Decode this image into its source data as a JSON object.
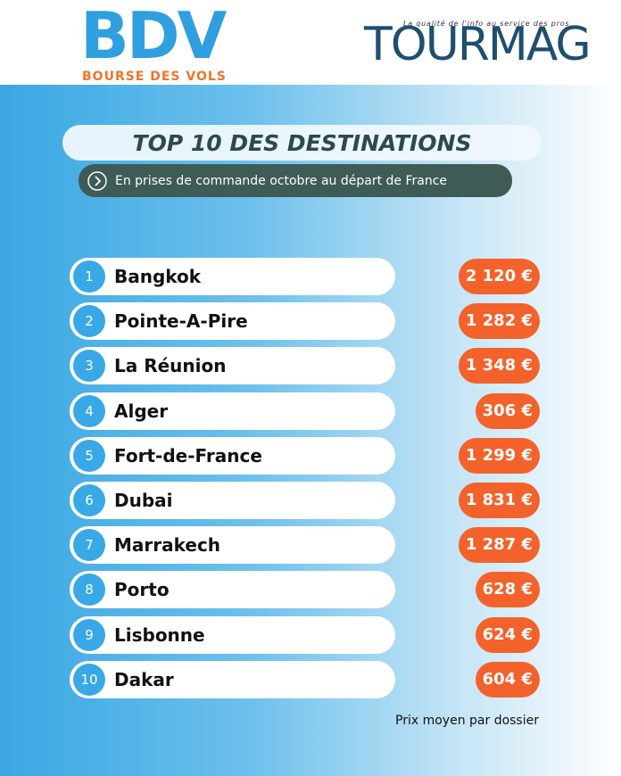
{
  "header": {
    "left_logo": "BDV",
    "left_logo_subtitle": "BOURSE DES VOLS",
    "right_logo": "TOURMAG",
    "right_logo_tagline": "La qualité de l'info au service des pros"
  },
  "title": "TOP 10 DES DESTINATIONS",
  "subtitle": "En prises de commande octobre  au départ de France",
  "rows": [
    {
      "rank": 1,
      "city": "Bangkok",
      "price": "2 120 €"
    },
    {
      "rank": 2,
      "city": "Pointe-A-Pire",
      "price": "1 282 €"
    },
    {
      "rank": 3,
      "city": "La Réunion",
      "price": "1 348 €"
    },
    {
      "rank": 4,
      "city": "Alger",
      "price": "306 €"
    },
    {
      "rank": 5,
      "city": "Fort-de-France",
      "price": "1 299 €"
    },
    {
      "rank": 6,
      "city": "Dubai",
      "price": "1 831 €"
    },
    {
      "rank": 7,
      "city": "Marrakech",
      "price": "1 287 €"
    },
    {
      "rank": 8,
      "city": "Porto",
      "price": "628 €"
    },
    {
      "rank": 9,
      "city": "Lisbonne",
      "price": "624 €"
    },
    {
      "rank": 10,
      "city": "Dakar",
      "price": "604 €"
    }
  ],
  "footer_note": "Prix moyen par dossier"
}
